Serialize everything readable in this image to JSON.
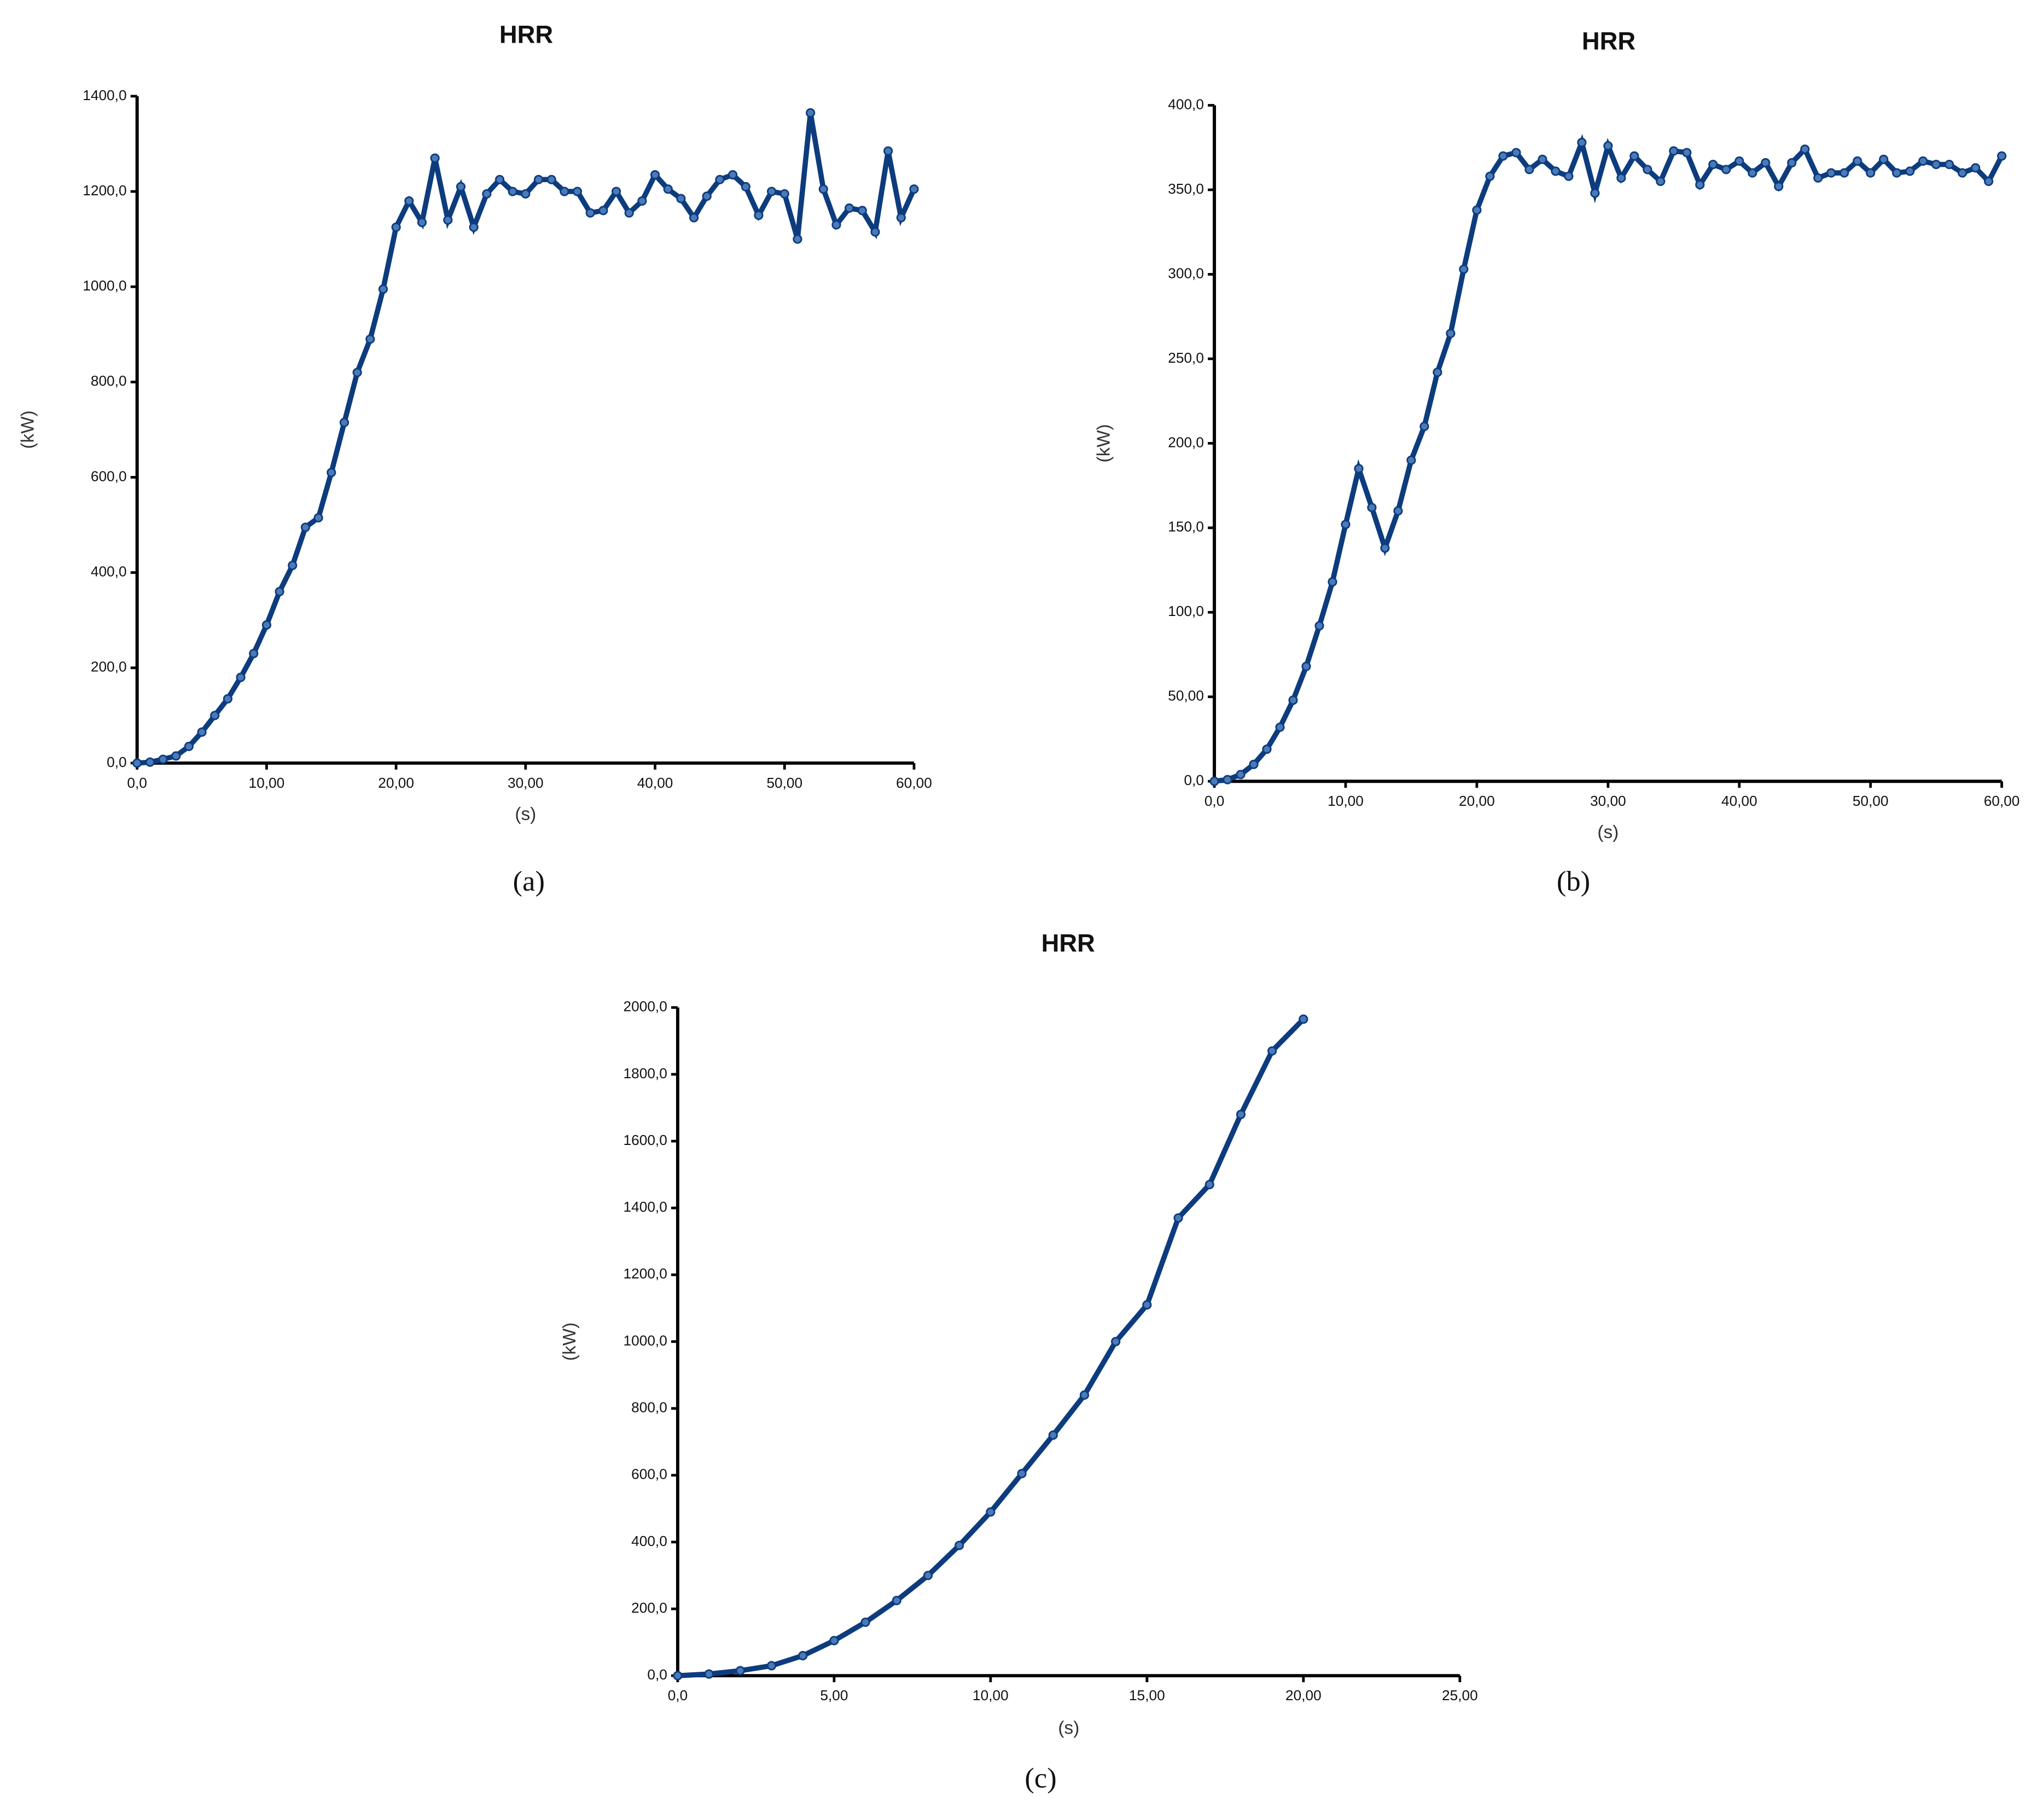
{
  "chart_data": [
    {
      "type": "line",
      "title": "HRR",
      "xlabel": "(s)",
      "ylabel": "(kW)",
      "caption": "(a)",
      "color": "#0d3c7e",
      "x": [
        0,
        1,
        2,
        3,
        4,
        5,
        6,
        7,
        8,
        9,
        10,
        11,
        12,
        13,
        14,
        15,
        16,
        17,
        18,
        19,
        20,
        21,
        22,
        23,
        24,
        25,
        26,
        27,
        28,
        29,
        30,
        31,
        32,
        33,
        34,
        35,
        36,
        37,
        38,
        39,
        40,
        41,
        42,
        43,
        44,
        45,
        46,
        47,
        48,
        49,
        50,
        51,
        52,
        53,
        54,
        55,
        56,
        57,
        58,
        59,
        60
      ],
      "values": [
        0,
        2,
        8,
        15,
        35,
        65,
        100,
        135,
        180,
        230,
        290,
        360,
        415,
        495,
        515,
        610,
        715,
        820,
        890,
        995,
        1125,
        1180,
        1135,
        1270,
        1140,
        1210,
        1125,
        1195,
        1225,
        1200,
        1195,
        1225,
        1225,
        1200,
        1200,
        1155,
        1160,
        1200,
        1155,
        1180,
        1235,
        1205,
        1185,
        1145,
        1190,
        1225,
        1235,
        1210,
        1150,
        1200,
        1195,
        1100,
        1365,
        1205,
        1130,
        1165,
        1160,
        1115,
        1285,
        1145,
        1205
      ],
      "xlim": [
        0,
        60
      ],
      "xticks": [
        {
          "value": 0,
          "label": "0,0"
        },
        {
          "value": 10,
          "label": "10,00"
        },
        {
          "value": 20,
          "label": "20,00"
        },
        {
          "value": 30,
          "label": "30,00"
        },
        {
          "value": 40,
          "label": "40,00"
        },
        {
          "value": 50,
          "label": "50,00"
        },
        {
          "value": 60,
          "label": "60,00"
        }
      ],
      "ylim": [
        0,
        1400
      ],
      "yticks": [
        {
          "value": 0,
          "label": "0,0"
        },
        {
          "value": 200,
          "label": "200,0"
        },
        {
          "value": 400,
          "label": "400,0"
        },
        {
          "value": 600,
          "label": "600,0"
        },
        {
          "value": 800,
          "label": "800,0"
        },
        {
          "value": 1000,
          "label": "1000,0"
        },
        {
          "value": 1200,
          "label": "1200,0"
        },
        {
          "value": 1400,
          "label": "1400,0"
        }
      ]
    },
    {
      "type": "line",
      "title": "HRR",
      "xlabel": "(s)",
      "ylabel": "(kW)",
      "caption": "(b)",
      "color": "#0d3c7e",
      "x": [
        0,
        1,
        2,
        3,
        4,
        5,
        6,
        7,
        8,
        9,
        10,
        11,
        12,
        13,
        14,
        15,
        16,
        17,
        18,
        19,
        20,
        21,
        22,
        23,
        24,
        25,
        26,
        27,
        28,
        29,
        30,
        31,
        32,
        33,
        34,
        35,
        36,
        37,
        38,
        39,
        40,
        41,
        42,
        43,
        44,
        45,
        46,
        47,
        48,
        49,
        50,
        51,
        52,
        53,
        54,
        55,
        56,
        57,
        58,
        59,
        60
      ],
      "values": [
        0,
        1,
        4,
        10,
        19,
        32,
        48,
        68,
        92,
        118,
        152,
        185,
        162,
        138,
        160,
        190,
        210,
        242,
        265,
        303,
        338,
        358,
        370,
        372,
        362,
        368,
        361,
        358,
        378,
        348,
        376,
        357,
        370,
        362,
        355,
        373,
        372,
        353,
        365,
        362,
        367,
        360,
        366,
        352,
        366,
        374,
        357,
        360,
        360,
        367,
        360,
        368,
        360,
        361,
        367,
        365,
        365,
        360,
        363,
        355,
        370
      ],
      "xlim": [
        0,
        60
      ],
      "xticks": [
        {
          "value": 0,
          "label": "0,0"
        },
        {
          "value": 10,
          "label": "10,00"
        },
        {
          "value": 20,
          "label": "20,00"
        },
        {
          "value": 30,
          "label": "30,00"
        },
        {
          "value": 40,
          "label": "40,00"
        },
        {
          "value": 50,
          "label": "50,00"
        },
        {
          "value": 60,
          "label": "60,00"
        }
      ],
      "ylim": [
        0,
        400
      ],
      "yticks": [
        {
          "value": 0,
          "label": "0,0"
        },
        {
          "value": 50,
          "label": "50,00"
        },
        {
          "value": 100,
          "label": "100,0"
        },
        {
          "value": 150,
          "label": "150,0"
        },
        {
          "value": 200,
          "label": "200,0"
        },
        {
          "value": 250,
          "label": "250,0"
        },
        {
          "value": 300,
          "label": "300,0"
        },
        {
          "value": 350,
          "label": "350,0"
        },
        {
          "value": 400,
          "label": "400,0"
        }
      ]
    },
    {
      "type": "line",
      "title": "HRR",
      "xlabel": "(s)",
      "ylabel": "(kW)",
      "caption": "(c)",
      "color": "#0d3c7e",
      "x": [
        0,
        1,
        2,
        3,
        4,
        5,
        6,
        7,
        8,
        9,
        10,
        11,
        12,
        13,
        14,
        15,
        16,
        17,
        18,
        19,
        20
      ],
      "values": [
        0,
        5,
        15,
        30,
        60,
        105,
        160,
        225,
        300,
        390,
        490,
        605,
        720,
        840,
        1000,
        1110,
        1370,
        1470,
        1680,
        1870,
        1965
      ],
      "xlim": [
        0,
        25
      ],
      "xticks": [
        {
          "value": 0,
          "label": "0,0"
        },
        {
          "value": 5,
          "label": "5,00"
        },
        {
          "value": 10,
          "label": "10,00"
        },
        {
          "value": 15,
          "label": "15,00"
        },
        {
          "value": 20,
          "label": "20,00"
        },
        {
          "value": 25,
          "label": "25,00"
        }
      ],
      "ylim": [
        0,
        2000
      ],
      "yticks": [
        {
          "value": 0,
          "label": "0,0"
        },
        {
          "value": 200,
          "label": "200,0"
        },
        {
          "value": 400,
          "label": "400,0"
        },
        {
          "value": 600,
          "label": "600,0"
        },
        {
          "value": 800,
          "label": "800,0"
        },
        {
          "value": 1000,
          "label": "1000,0"
        },
        {
          "value": 1200,
          "label": "1200,0"
        },
        {
          "value": 1400,
          "label": "1400,0"
        },
        {
          "value": 1600,
          "label": "1600,0"
        },
        {
          "value": 1800,
          "label": "1800,0"
        },
        {
          "value": 2000,
          "label": "2000,0"
        }
      ]
    }
  ]
}
